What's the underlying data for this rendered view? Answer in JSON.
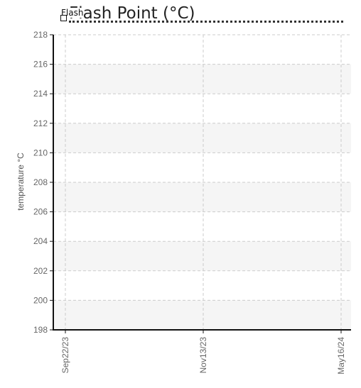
{
  "chart_data": {
    "type": "line",
    "title": "Flash Point (°C)",
    "title_overlap_text": "Flash",
    "xlabel": "",
    "ylabel": "temperature °C",
    "ylim": [
      198,
      218
    ],
    "y_ticks": [
      198,
      200,
      202,
      204,
      206,
      208,
      210,
      212,
      214,
      216,
      218
    ],
    "x_tick_labels": [
      "Sep22/23",
      "Nov13/23",
      "May16/24"
    ],
    "series": [],
    "grid": true,
    "colors": {
      "axis": "#111111",
      "grid": "#cccccc",
      "band": "#f5f5f5",
      "tick_text": "#666666"
    }
  }
}
